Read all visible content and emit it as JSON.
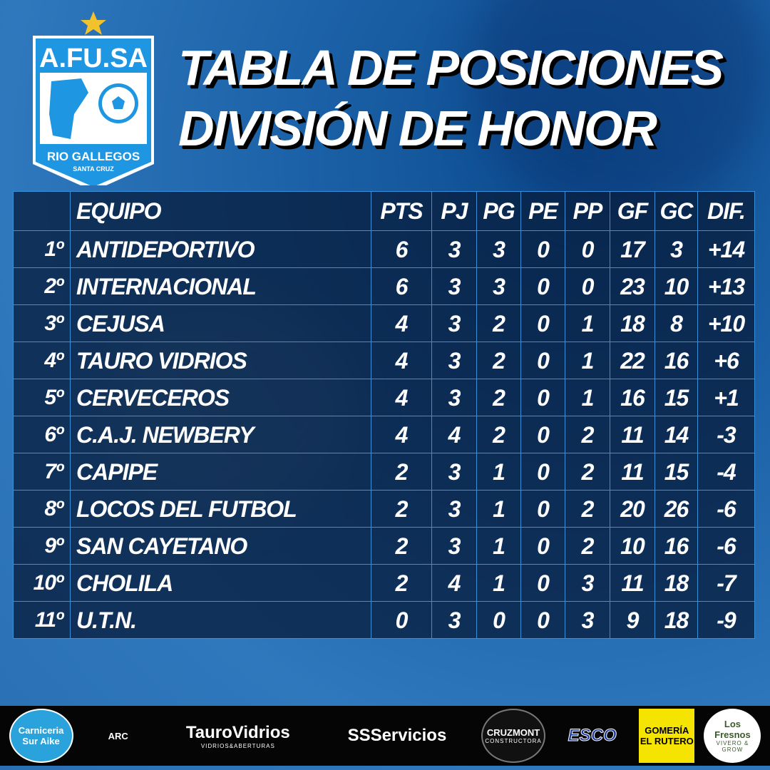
{
  "logo": {
    "name": "A.FU.SA",
    "city": "RIO GALLEGOS",
    "province": "SANTA CRUZ"
  },
  "title": {
    "line1": "TABLA DE POSICIONES",
    "line2": "DIVISIÓN DE HONOR"
  },
  "table": {
    "headers": [
      "",
      "EQUIPO",
      "PTS",
      "PJ",
      "PG",
      "PE",
      "PP",
      "GF",
      "GC",
      "DIF."
    ],
    "rows": [
      [
        "1º",
        "ANTIDEPORTIVO",
        "6",
        "3",
        "3",
        "0",
        "0",
        "17",
        "3",
        "+14"
      ],
      [
        "2º",
        "INTERNACIONAL",
        "6",
        "3",
        "3",
        "0",
        "0",
        "23",
        "10",
        "+13"
      ],
      [
        "3º",
        "CEJUSA",
        "4",
        "3",
        "2",
        "0",
        "1",
        "18",
        "8",
        "+10"
      ],
      [
        "4º",
        "TAURO VIDRIOS",
        "4",
        "3",
        "2",
        "0",
        "1",
        "22",
        "16",
        "+6"
      ],
      [
        "5º",
        "CERVECEROS",
        "4",
        "3",
        "2",
        "0",
        "1",
        "16",
        "15",
        "+1"
      ],
      [
        "6º",
        "C.A.J. NEWBERY",
        "4",
        "4",
        "2",
        "0",
        "2",
        "11",
        "14",
        "-3"
      ],
      [
        "7º",
        "CAPIPE",
        "2",
        "3",
        "1",
        "0",
        "2",
        "11",
        "15",
        "-4"
      ],
      [
        "8º",
        "LOCOS DEL FUTBOL",
        "2",
        "3",
        "1",
        "0",
        "2",
        "20",
        "26",
        "-6"
      ],
      [
        "9º",
        "SAN CAYETANO",
        "2",
        "3",
        "1",
        "0",
        "2",
        "10",
        "16",
        "-6"
      ],
      [
        "10º",
        "CHOLILA",
        "2",
        "4",
        "1",
        "0",
        "3",
        "11",
        "18",
        "-7"
      ],
      [
        "11º",
        "U.T.N.",
        "0",
        "3",
        "0",
        "0",
        "3",
        "9",
        "18",
        "-9"
      ]
    ]
  },
  "sponsors": [
    {
      "name": "Carniceria Sur Aike",
      "color": "#2aa3dc"
    },
    {
      "name": "ARC",
      "color": "#c0282a"
    },
    {
      "name": "TauroVidrios",
      "sub": "VIDRIOS&ABERTURAS",
      "color": "#4a6ea8"
    },
    {
      "name": "SSServicios",
      "color": "#1b8fe0"
    },
    {
      "name": "CRUZMONT",
      "sub": "CONSTRUCTORA",
      "color": "#5bc0e8"
    },
    {
      "name": "ESCO",
      "color": "#1e3a9a"
    },
    {
      "name": "GOMERÍA EL RUTERO",
      "color": "#f5e400"
    },
    {
      "name": "Los Fresnos",
      "sub": "VIVERO & GROW",
      "color": "#ffffff"
    }
  ]
}
